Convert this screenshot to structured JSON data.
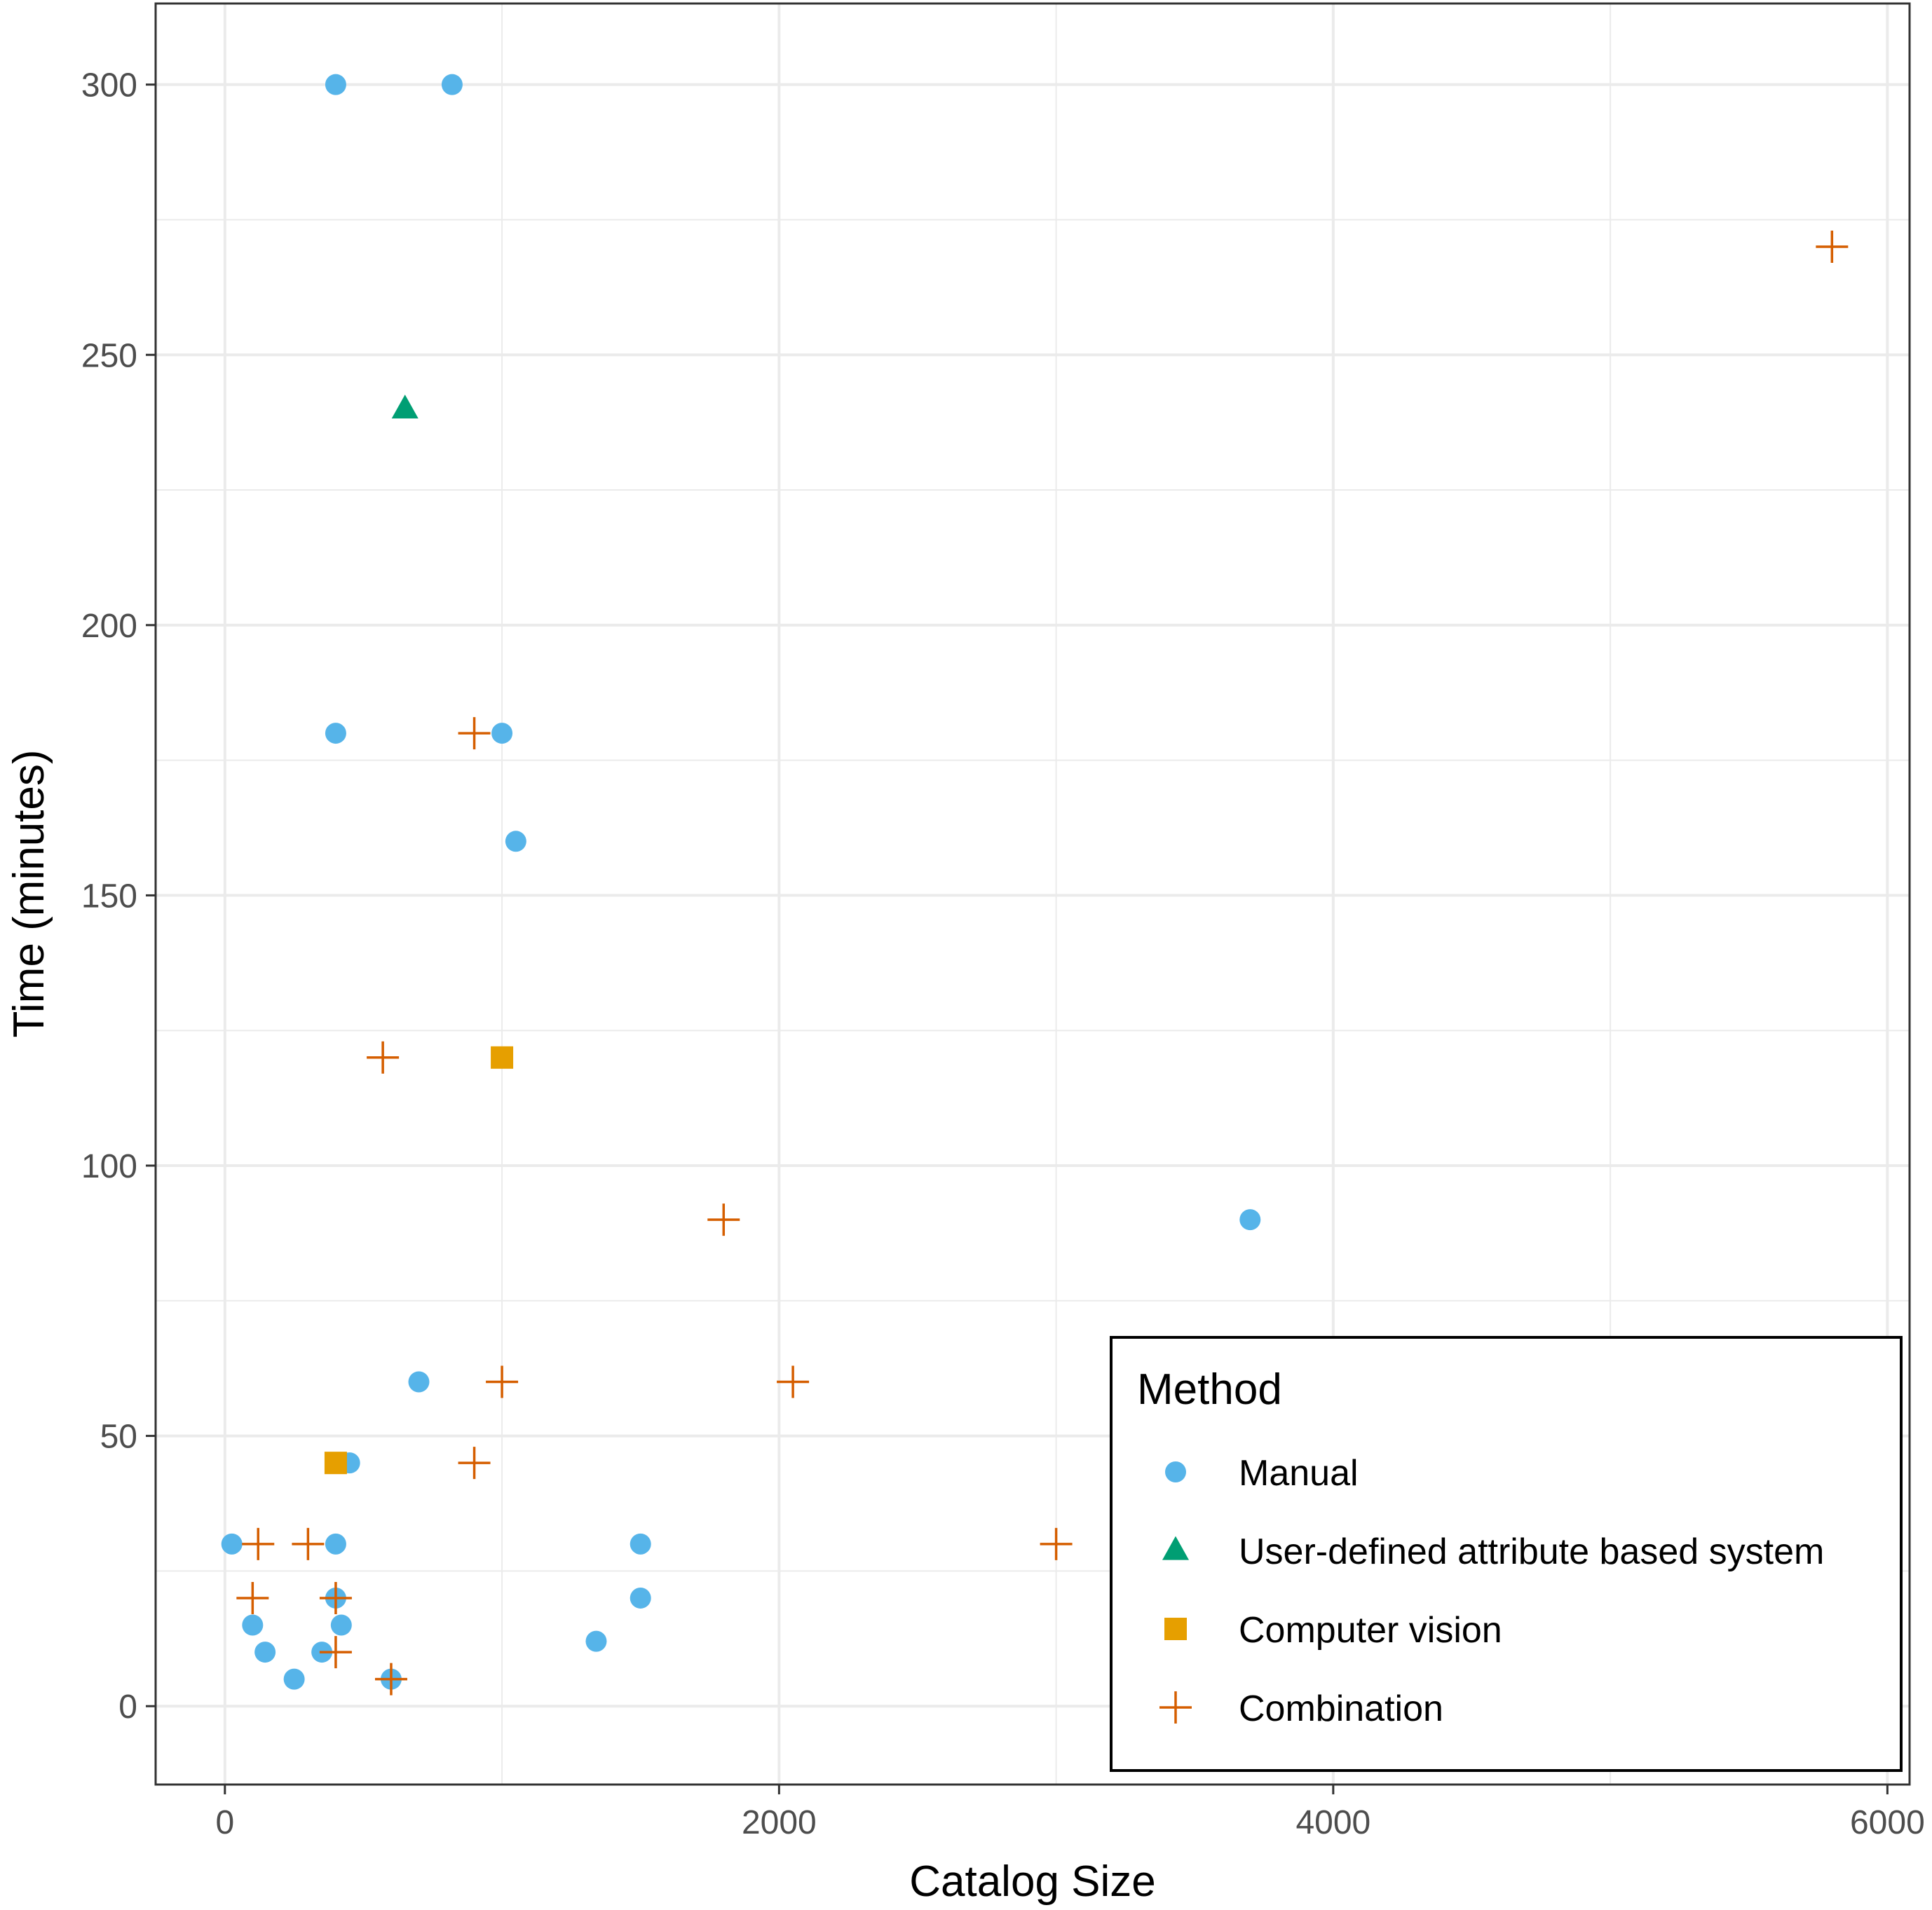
{
  "chart_data": {
    "type": "scatter",
    "title": "",
    "xlabel": "Catalog Size",
    "ylabel": "Time (minutes)",
    "xlim": [
      -250,
      6080
    ],
    "ylim": [
      -14.5,
      315
    ],
    "xticks": [
      0,
      2000,
      4000,
      6000
    ],
    "xtick_labels": [
      "0",
      "2000",
      "4000",
      "6000"
    ],
    "yticks": [
      0,
      50,
      100,
      150,
      200,
      250,
      300
    ],
    "ytick_labels": [
      "0",
      "50",
      "100",
      "150",
      "200",
      "250",
      "300"
    ],
    "grid": true,
    "legend": {
      "title": "Method",
      "position": "bottom-right"
    },
    "series": [
      {
        "name": "Manual",
        "shape": "circle",
        "color": "#56B4E9",
        "points": [
          {
            "x": 400,
            "y": 300
          },
          {
            "x": 820,
            "y": 300
          },
          {
            "x": 400,
            "y": 180
          },
          {
            "x": 1000,
            "y": 180
          },
          {
            "x": 1050,
            "y": 160
          },
          {
            "x": 3700,
            "y": 90
          },
          {
            "x": 700,
            "y": 60
          },
          {
            "x": 450,
            "y": 45
          },
          {
            "x": 25,
            "y": 30
          },
          {
            "x": 400,
            "y": 30
          },
          {
            "x": 1500,
            "y": 30
          },
          {
            "x": 400,
            "y": 20
          },
          {
            "x": 1500,
            "y": 20
          },
          {
            "x": 100,
            "y": 15
          },
          {
            "x": 420,
            "y": 15
          },
          {
            "x": 1340,
            "y": 12
          },
          {
            "x": 145,
            "y": 10
          },
          {
            "x": 350,
            "y": 10
          },
          {
            "x": 250,
            "y": 5
          },
          {
            "x": 600,
            "y": 5
          }
        ]
      },
      {
        "name": "User-defined attribute based system",
        "shape": "triangle",
        "color": "#009E73",
        "points": [
          {
            "x": 650,
            "y": 240
          }
        ]
      },
      {
        "name": "Computer vision",
        "shape": "square",
        "color": "#E69F00",
        "points": [
          {
            "x": 1000,
            "y": 120
          },
          {
            "x": 400,
            "y": 45
          }
        ]
      },
      {
        "name": "Combination",
        "shape": "plus",
        "color": "#D55E00",
        "points": [
          {
            "x": 5800,
            "y": 270
          },
          {
            "x": 900,
            "y": 180
          },
          {
            "x": 570,
            "y": 120
          },
          {
            "x": 1800,
            "y": 90
          },
          {
            "x": 1000,
            "y": 60
          },
          {
            "x": 2050,
            "y": 60
          },
          {
            "x": 900,
            "y": 45
          },
          {
            "x": 120,
            "y": 30
          },
          {
            "x": 300,
            "y": 30
          },
          {
            "x": 3000,
            "y": 30
          },
          {
            "x": 100,
            "y": 20
          },
          {
            "x": 400,
            "y": 20
          },
          {
            "x": 400,
            "y": 10
          },
          {
            "x": 600,
            "y": 5
          }
        ]
      }
    ]
  }
}
